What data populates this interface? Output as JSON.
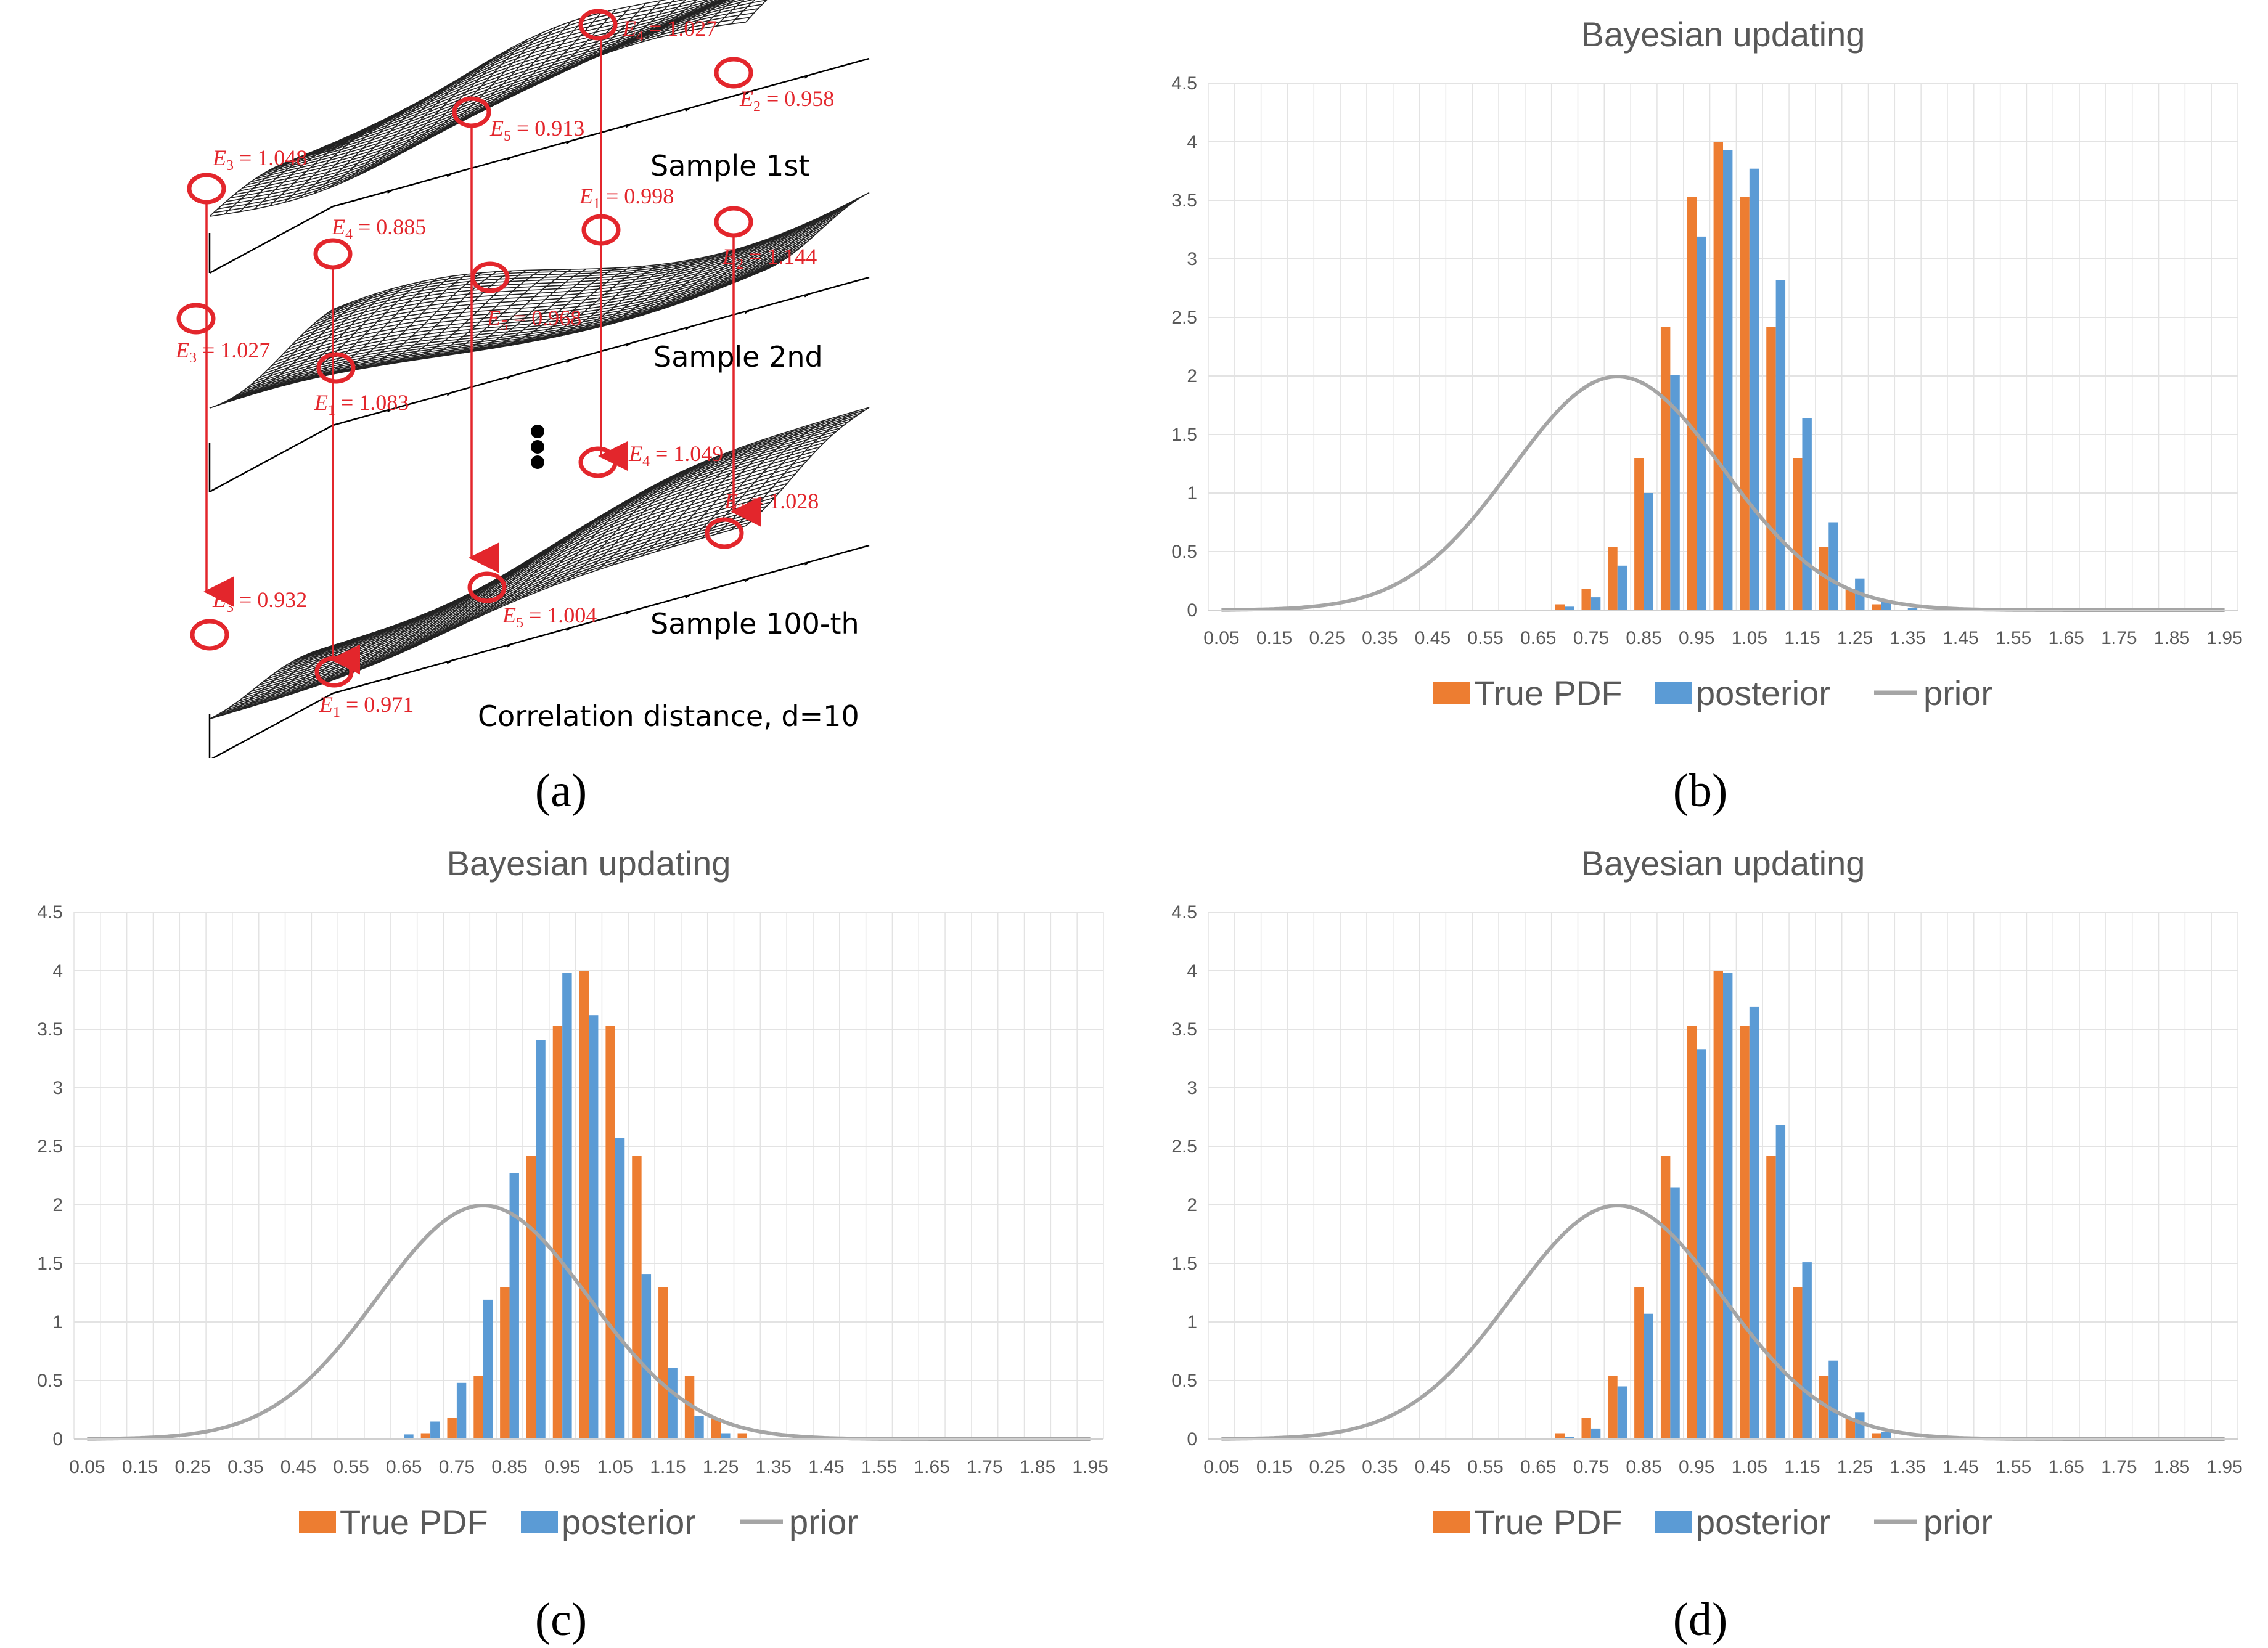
{
  "captions": [
    "(a)",
    "(b)",
    "(c)",
    "(d)"
  ],
  "panel_a": {
    "sample_labels": [
      "Sample 1st",
      "Sample 2nd",
      "Sample 100-th"
    ],
    "footer": "Correlation distance, d=10",
    "annotations": [
      {
        "name": "E4",
        "text": "= 1.027"
      },
      {
        "name": "E2",
        "text": "= 0.958"
      },
      {
        "name": "E5",
        "text": "= 0.913"
      },
      {
        "name": "E3",
        "text": "= 1.048"
      },
      {
        "name": "E4",
        "text": "= 0.885"
      },
      {
        "name": "E1",
        "text": "= 0.998"
      },
      {
        "name": "E2",
        "text": "= 1.144"
      },
      {
        "name": "E5",
        "text": "= 0.968"
      },
      {
        "name": "E3",
        "text": "= 1.027"
      },
      {
        "name": "E1",
        "text": "= 1.083"
      },
      {
        "name": "E4",
        "text": "= 1.049"
      },
      {
        "name": "E2",
        "text": "= 1.028"
      },
      {
        "name": "E3",
        "text": "= 0.932"
      },
      {
        "name": "E5",
        "text": "= 1.004"
      },
      {
        "name": "E1",
        "text": "= 0.971"
      }
    ]
  },
  "colors": {
    "true_pdf": "#ed7d31",
    "posterior": "#5b9bd5",
    "prior": "#a5a5a5",
    "grid": "#e3e3e3",
    "red": "#e3262c"
  },
  "chart_data": [
    {
      "panel": "b",
      "type": "bar",
      "title": "Bayesian updating",
      "categories": [
        "0.05",
        "0.1",
        "0.15",
        "0.2",
        "0.25",
        "0.3",
        "0.35",
        "0.4",
        "0.45",
        "0.5",
        "0.55",
        "0.6",
        "0.65",
        "0.7",
        "0.75",
        "0.8",
        "0.85",
        "0.9",
        "0.95",
        "1",
        "1.05",
        "1.1",
        "1.15",
        "1.2",
        "1.25",
        "1.3",
        "1.35",
        "1.4",
        "1.45",
        "1.5",
        "1.55",
        "1.6",
        "1.65",
        "1.7",
        "1.75",
        "1.8",
        "1.85",
        "1.9",
        "1.95"
      ],
      "tick_labels": [
        "0.05",
        "0.15",
        "0.25",
        "0.35",
        "0.45",
        "0.55",
        "0.65",
        "0.75",
        "0.85",
        "0.95",
        "1.05",
        "1.15",
        "1.25",
        "1.35",
        "1.45",
        "1.55",
        "1.65",
        "1.75",
        "1.85",
        "1.95"
      ],
      "ylim": [
        0,
        4.5
      ],
      "yticks": [
        "0",
        "0.5",
        "1",
        "1.5",
        "2",
        "2.5",
        "3",
        "3.5",
        "4",
        "4.5"
      ],
      "series": [
        {
          "name": "True PDF",
          "kind": "bar",
          "values": [
            0,
            0,
            0,
            0,
            0,
            0,
            0,
            0,
            0,
            0,
            0,
            0,
            0,
            0.05,
            0.18,
            0.54,
            1.3,
            2.42,
            3.53,
            4.0,
            3.53,
            2.42,
            1.3,
            0.54,
            0.18,
            0.05,
            0,
            0,
            0,
            0,
            0,
            0,
            0,
            0,
            0,
            0,
            0,
            0,
            0
          ]
        },
        {
          "name": "posterior",
          "kind": "bar",
          "values": [
            0,
            0,
            0,
            0,
            0,
            0,
            0,
            0,
            0,
            0,
            0,
            0,
            0,
            0.03,
            0.11,
            0.38,
            1.0,
            2.01,
            3.19,
            3.93,
            3.77,
            2.82,
            1.64,
            0.75,
            0.27,
            0.07,
            0.02,
            0,
            0,
            0,
            0,
            0,
            0,
            0,
            0,
            0,
            0,
            0,
            0
          ]
        },
        {
          "name": "prior",
          "kind": "line",
          "mean": 0.8,
          "sd": 0.2
        }
      ],
      "legend": [
        "True PDF",
        "posterior",
        "prior"
      ]
    },
    {
      "panel": "c",
      "type": "bar",
      "title": "Bayesian updating",
      "categories": [
        "0.05",
        "0.1",
        "0.15",
        "0.2",
        "0.25",
        "0.3",
        "0.35",
        "0.4",
        "0.45",
        "0.5",
        "0.55",
        "0.6",
        "0.65",
        "0.7",
        "0.75",
        "0.8",
        "0.85",
        "0.9",
        "0.95",
        "1",
        "1.05",
        "1.1",
        "1.15",
        "1.2",
        "1.25",
        "1.3",
        "1.35",
        "1.4",
        "1.45",
        "1.5",
        "1.55",
        "1.6",
        "1.65",
        "1.7",
        "1.75",
        "1.8",
        "1.85",
        "1.9",
        "1.95"
      ],
      "tick_labels": [
        "0.05",
        "0.15",
        "0.25",
        "0.35",
        "0.45",
        "0.55",
        "0.65",
        "0.75",
        "0.85",
        "0.95",
        "1.05",
        "1.15",
        "1.25",
        "1.35",
        "1.45",
        "1.55",
        "1.65",
        "1.75",
        "1.85",
        "1.95"
      ],
      "ylim": [
        0,
        4.5
      ],
      "yticks": [
        "0",
        "0.5",
        "1",
        "1.5",
        "2",
        "2.5",
        "3",
        "3.5",
        "4",
        "4.5"
      ],
      "series": [
        {
          "name": "True PDF",
          "kind": "bar",
          "values": [
            0,
            0,
            0,
            0,
            0,
            0,
            0,
            0,
            0,
            0,
            0,
            0,
            0,
            0.05,
            0.18,
            0.54,
            1.3,
            2.42,
            3.53,
            4.0,
            3.53,
            2.42,
            1.3,
            0.54,
            0.18,
            0.05,
            0,
            0,
            0,
            0,
            0,
            0,
            0,
            0,
            0,
            0,
            0,
            0,
            0
          ]
        },
        {
          "name": "posterior",
          "kind": "bar",
          "values": [
            0,
            0,
            0,
            0,
            0,
            0,
            0,
            0,
            0,
            0,
            0,
            0,
            0.04,
            0.15,
            0.48,
            1.19,
            2.27,
            3.41,
            3.98,
            3.62,
            2.57,
            1.41,
            0.61,
            0.2,
            0.05,
            0,
            0,
            0,
            0,
            0,
            0,
            0,
            0,
            0,
            0,
            0,
            0,
            0,
            0
          ]
        },
        {
          "name": "prior",
          "kind": "line",
          "mean": 0.8,
          "sd": 0.2
        }
      ],
      "legend": [
        "True PDF",
        "posterior",
        "prior"
      ]
    },
    {
      "panel": "d",
      "type": "bar",
      "title": "Bayesian updating",
      "categories": [
        "0.05",
        "0.1",
        "0.15",
        "0.2",
        "0.25",
        "0.3",
        "0.35",
        "0.4",
        "0.45",
        "0.5",
        "0.55",
        "0.6",
        "0.65",
        "0.7",
        "0.75",
        "0.8",
        "0.85",
        "0.9",
        "0.95",
        "1",
        "1.05",
        "1.1",
        "1.15",
        "1.2",
        "1.25",
        "1.3",
        "1.35",
        "1.4",
        "1.45",
        "1.5",
        "1.55",
        "1.6",
        "1.65",
        "1.7",
        "1.75",
        "1.8",
        "1.85",
        "1.9",
        "1.95"
      ],
      "tick_labels": [
        "0.05",
        "0.15",
        "0.25",
        "0.35",
        "0.45",
        "0.55",
        "0.65",
        "0.75",
        "0.85",
        "0.95",
        "1.05",
        "1.15",
        "1.25",
        "1.35",
        "1.45",
        "1.55",
        "1.65",
        "1.75",
        "1.85",
        "1.95"
      ],
      "ylim": [
        0,
        4.5
      ],
      "yticks": [
        "0",
        "0.5",
        "1",
        "1.5",
        "2",
        "2.5",
        "3",
        "3.5",
        "4",
        "4.5"
      ],
      "series": [
        {
          "name": "True PDF",
          "kind": "bar",
          "values": [
            0,
            0,
            0,
            0,
            0,
            0,
            0,
            0,
            0,
            0,
            0,
            0,
            0,
            0.05,
            0.18,
            0.54,
            1.3,
            2.42,
            3.53,
            4.0,
            3.53,
            2.42,
            1.3,
            0.54,
            0.18,
            0.05,
            0,
            0,
            0,
            0,
            0,
            0,
            0,
            0,
            0,
            0,
            0,
            0,
            0
          ]
        },
        {
          "name": "posterior",
          "kind": "bar",
          "values": [
            0,
            0,
            0,
            0,
            0,
            0,
            0,
            0,
            0,
            0,
            0,
            0,
            0,
            0.02,
            0.09,
            0.45,
            1.07,
            2.15,
            3.33,
            3.98,
            3.69,
            2.68,
            1.51,
            0.67,
            0.23,
            0.06,
            0,
            0,
            0,
            0,
            0,
            0,
            0,
            0,
            0,
            0,
            0,
            0,
            0
          ]
        },
        {
          "name": "prior",
          "kind": "line",
          "mean": 0.8,
          "sd": 0.2
        }
      ],
      "legend": [
        "True PDF",
        "posterior",
        "prior"
      ]
    }
  ]
}
